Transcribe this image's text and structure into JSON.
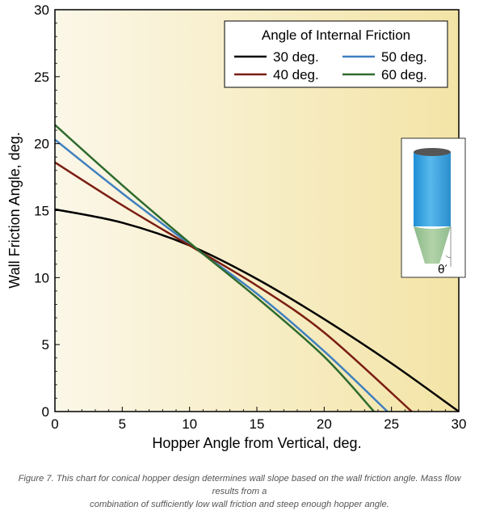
{
  "chart_data": {
    "type": "line",
    "xlabel": "Hopper Angle from Vertical, deg.",
    "ylabel": "Wall Friction Angle, deg.",
    "xlim": [
      0,
      30
    ],
    "ylim": [
      0,
      30
    ],
    "xticks": [
      "0",
      "5",
      "10",
      "15",
      "20",
      "25",
      "30"
    ],
    "yticks": [
      "0",
      "5",
      "10",
      "15",
      "20",
      "25",
      "30"
    ],
    "grid": false,
    "legend_title": "Angle of Internal Friction",
    "legend_position": "top-right",
    "series": [
      {
        "name": "30 deg.",
        "color": "#000000",
        "x": [
          0,
          5,
          10,
          15,
          20,
          25,
          30
        ],
        "y": [
          15.1,
          14.1,
          12.4,
          9.9,
          6.9,
          3.6,
          0.0
        ]
      },
      {
        "name": "50 deg.",
        "color": "#3f7fbf",
        "x": [
          0,
          5,
          10,
          15,
          20,
          24.7
        ],
        "y": [
          20.3,
          16.3,
          12.5,
          8.8,
          4.5,
          0.0
        ]
      },
      {
        "name": "40 deg.",
        "color": "#7b1e12",
        "x": [
          0,
          5,
          10,
          15,
          20,
          26.5
        ],
        "y": [
          18.6,
          15.4,
          12.4,
          9.4,
          5.9,
          0.0
        ]
      },
      {
        "name": "60 deg.",
        "color": "#2f6b2f",
        "x": [
          0,
          5,
          10,
          15,
          20,
          23.7
        ],
        "y": [
          21.4,
          16.9,
          12.6,
          8.5,
          4.1,
          0.0
        ]
      }
    ],
    "inset": {
      "angle_label": "θ′"
    }
  },
  "caption": {
    "line1": "Figure 7. This chart for conical hopper design determines wall slope based on the wall friction angle. Mass flow results from a",
    "line2": "combination of sufficiently low wall friction and steep enough hopper angle."
  }
}
